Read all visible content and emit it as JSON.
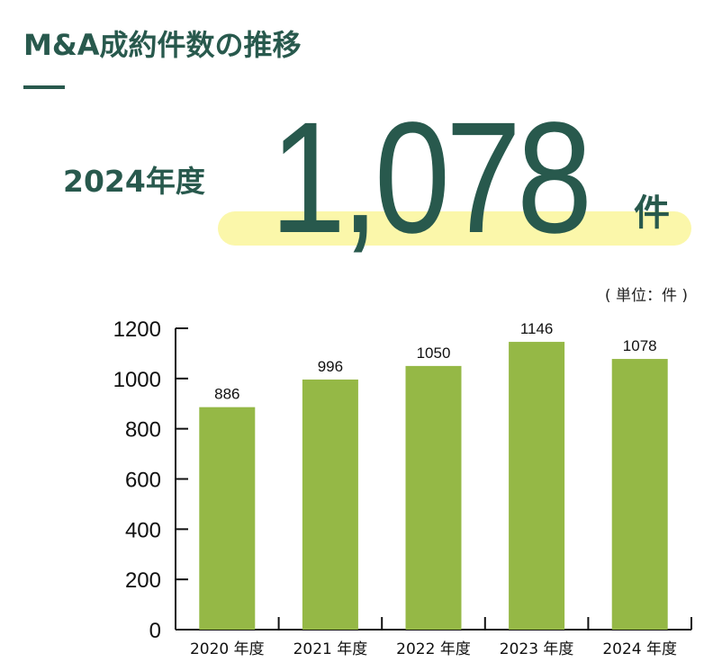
{
  "title": "M&A成約件数の推移",
  "highlight": {
    "year_label": "2024年度",
    "value": "1,078",
    "unit": "件"
  },
  "unit_note": "( 単位：件 )",
  "colors": {
    "bar": "#95b846",
    "text_primary": "#28594d",
    "highlight": "#fbf7aa",
    "axis": "#111111"
  },
  "chart_data": {
    "type": "bar",
    "categories": [
      "2020 年度",
      "2021 年度",
      "2022 年度",
      "2023 年度",
      "2024 年度"
    ],
    "values": [
      886,
      996,
      1050,
      1146,
      1078
    ],
    "value_labels": [
      "886",
      "996",
      "1050",
      "1146",
      "1078"
    ],
    "y_ticks": [
      "0",
      "200",
      "400",
      "600",
      "800",
      "1000",
      "1200"
    ],
    "ylim": [
      0,
      1200
    ],
    "grid": false,
    "legend": "none"
  }
}
